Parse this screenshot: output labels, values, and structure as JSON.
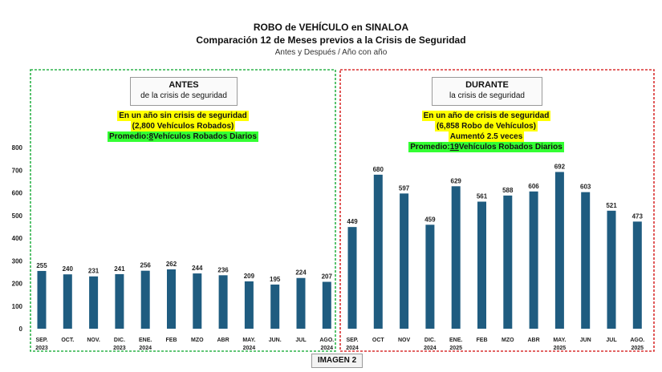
{
  "header": {
    "title": "ROBO de VEHÍCULO en SINALOA",
    "subtitle": "Comparación 12 de Meses previos a la Crisis de Seguridad",
    "caption": "Antes y Después / Año con año"
  },
  "panels": {
    "before": {
      "heading": "ANTES",
      "subheading": "de la crisis de seguridad",
      "line1": "En un año sin crisis de seguridad",
      "line2": "(2,800 Vehículos Robados)",
      "avg_prefix": "Promedio: ",
      "avg_value": "8",
      "avg_suffix": " Vehículos Robados Diarios"
    },
    "during": {
      "heading": "DURANTE",
      "subheading": "la crisis de seguridad",
      "line1": "En un año de crisis de seguridad",
      "line2": "(6,858 Robo de Vehículos)",
      "line3": "Aumentó 2.5 veces",
      "avg_prefix": "Promedio: ",
      "avg_value": "19",
      "avg_suffix": " Vehículos Robados Diarios"
    }
  },
  "footer": {
    "label": "IMAGEN 2"
  },
  "colors": {
    "bar": "#1f5c80",
    "before_border": "#2db34a",
    "during_border": "#d93030"
  },
  "chart_data": {
    "type": "bar",
    "title": "ROBO de VEHÍCULO en SINALOA",
    "ylim": [
      0,
      800
    ],
    "yticks": [
      0,
      100,
      200,
      300,
      400,
      500,
      600,
      700,
      800
    ],
    "series": [
      {
        "name": "ANTES",
        "categories": [
          [
            "SEP.",
            "2023"
          ],
          [
            "OCT."
          ],
          [
            "NOV."
          ],
          [
            "DIC.",
            "2023"
          ],
          [
            "ENE.",
            "2024"
          ],
          [
            "FEB"
          ],
          [
            "MZO"
          ],
          [
            "ABR"
          ],
          [
            "MAY.",
            "2024"
          ],
          [
            "JUN."
          ],
          [
            "JUL"
          ],
          [
            "AGO.",
            "2024"
          ]
        ],
        "values": [
          255,
          240,
          231,
          241,
          256,
          262,
          244,
          236,
          209,
          195,
          224,
          207
        ]
      },
      {
        "name": "DURANTE",
        "categories": [
          [
            "SEP.",
            "2024"
          ],
          [
            "OCT"
          ],
          [
            "NOV"
          ],
          [
            "DIC.",
            "2024"
          ],
          [
            "ENE.",
            "2025"
          ],
          [
            "FEB"
          ],
          [
            "MZO"
          ],
          [
            "ABR"
          ],
          [
            "MAY.",
            "2025"
          ],
          [
            "JUN"
          ],
          [
            "JUL"
          ],
          [
            "AGO.",
            "2025"
          ]
        ],
        "values": [
          449,
          680,
          597,
          459,
          629,
          561,
          588,
          606,
          692,
          603,
          521,
          473
        ]
      }
    ]
  }
}
